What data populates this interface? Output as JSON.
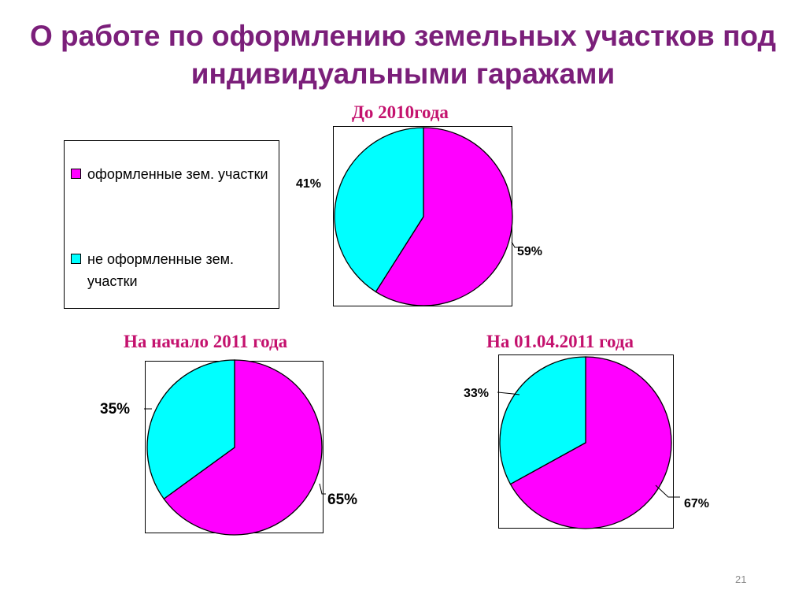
{
  "title": "О работе по оформлению земельных участков под индивидуальными гаражами",
  "slide_number": "21",
  "colors": {
    "title": "#7b1f7a",
    "chart_title": "#c4126e",
    "registered": "#ff00ff",
    "not_registered": "#00ffff"
  },
  "legend": {
    "items": [
      {
        "label": "оформленные зем. участки",
        "color": "#ff00ff"
      },
      {
        "label": "не оформленные зем. участки",
        "color": "#00ffff"
      }
    ]
  },
  "chart_data": [
    {
      "type": "pie",
      "title": "До 2010года",
      "categories": [
        "оформленные зем. участки",
        "не оформленные зем. участки"
      ],
      "values": [
        59,
        41
      ],
      "labels": [
        "59%",
        "41%"
      ]
    },
    {
      "type": "pie",
      "title": "На начало 2011 года",
      "categories": [
        "оформленные зем. участки",
        "не оформленные зем. участки"
      ],
      "values": [
        65,
        35
      ],
      "labels": [
        "65%",
        "35%"
      ]
    },
    {
      "type": "pie",
      "title": "На 01.04.2011 года",
      "categories": [
        "оформленные зем. участки",
        "не оформленные зем. участки"
      ],
      "values": [
        67,
        33
      ],
      "labels": [
        "67%",
        "33%"
      ]
    }
  ]
}
